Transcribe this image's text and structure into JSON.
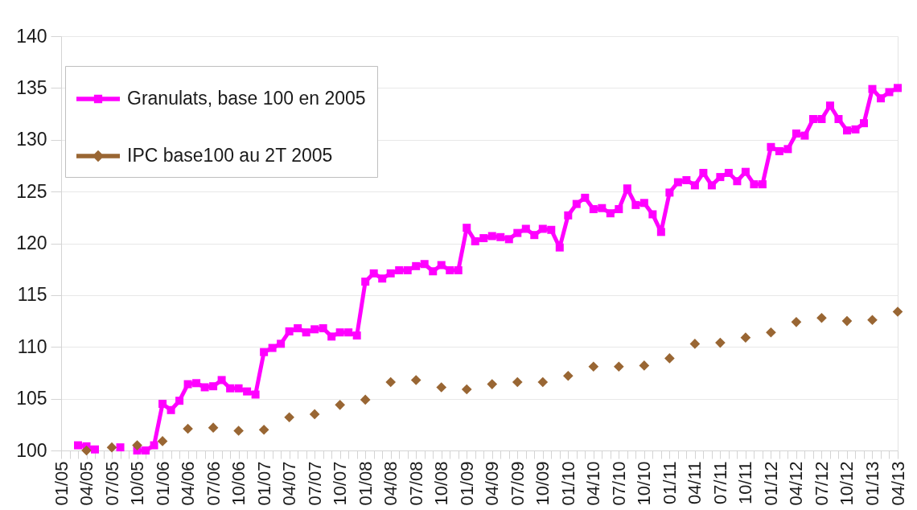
{
  "chart_data": {
    "type": "line",
    "categories": [
      "01/05",
      null,
      null,
      "04/05",
      null,
      null,
      "07/05",
      null,
      null,
      "10/05",
      null,
      null,
      "01/06",
      null,
      null,
      "04/06",
      null,
      null,
      "07/06",
      null,
      null,
      "10/06",
      null,
      null,
      "01/07",
      null,
      null,
      "04/07",
      null,
      null,
      "07/07",
      null,
      null,
      "10/07",
      null,
      null,
      "01/08",
      null,
      null,
      "04/08",
      null,
      null,
      "07/08",
      null,
      null,
      "10/08",
      null,
      null,
      "01/09",
      null,
      null,
      "04/09",
      null,
      null,
      "07/09",
      null,
      null,
      "10/09",
      null,
      null,
      "01/10",
      null,
      null,
      "04/10",
      null,
      null,
      "07/10",
      null,
      null,
      "10/10",
      null,
      null,
      "01/11",
      null,
      null,
      "04/11",
      null,
      null,
      "07/11",
      null,
      null,
      "10/11",
      null,
      null,
      "01/12",
      null,
      null,
      "04/12",
      null,
      null,
      "07/12",
      null,
      null,
      "10/12",
      null,
      null,
      "01/13",
      null,
      null,
      "04/13"
    ],
    "series": [
      {
        "name": "Granulats, base 100 en 2005",
        "color": "#ff00ff",
        "marker": "square",
        "values": [
          null,
          null,
          100.5,
          100.4,
          100.1,
          null,
          null,
          100.3,
          null,
          100.0,
          100.0,
          100.5,
          104.5,
          103.9,
          104.8,
          106.4,
          106.5,
          106.1,
          106.2,
          106.8,
          106.0,
          106.0,
          105.7,
          105.4,
          109.5,
          109.9,
          110.3,
          111.5,
          111.8,
          111.4,
          111.7,
          111.8,
          111.0,
          111.4,
          111.4,
          111.1,
          116.3,
          117.1,
          116.6,
          117.1,
          117.4,
          117.4,
          117.8,
          118.0,
          117.3,
          117.9,
          117.4,
          117.4,
          121.5,
          120.2,
          120.5,
          120.7,
          120.6,
          120.4,
          121.0,
          121.4,
          120.8,
          121.4,
          121.3,
          119.6,
          122.7,
          123.8,
          124.4,
          123.3,
          123.4,
          122.9,
          123.3,
          125.3,
          123.7,
          123.9,
          122.8,
          121.1,
          124.9,
          125.9,
          126.1,
          125.6,
          126.8,
          125.6,
          126.4,
          126.8,
          126.0,
          126.9,
          125.7,
          125.7,
          129.3,
          128.9,
          129.1,
          130.6,
          130.4,
          132.0,
          132.0,
          133.3,
          132.0,
          130.9,
          131.0,
          131.6,
          134.9,
          134.0,
          134.6,
          135.0
        ]
      },
      {
        "name": "IPC base100 au 2T 2005",
        "type": "scatter",
        "color": "#996633",
        "marker": "diamond",
        "values": [
          null,
          null,
          null,
          100.0,
          null,
          null,
          100.3,
          null,
          null,
          100.5,
          null,
          null,
          100.9,
          null,
          null,
          102.1,
          null,
          null,
          102.2,
          null,
          null,
          101.9,
          null,
          null,
          102.0,
          null,
          null,
          103.2,
          null,
          null,
          103.5,
          null,
          null,
          104.4,
          null,
          null,
          104.9,
          null,
          null,
          106.6,
          null,
          null,
          106.8,
          null,
          null,
          106.1,
          null,
          null,
          105.9,
          null,
          null,
          106.4,
          null,
          null,
          106.6,
          null,
          null,
          106.6,
          null,
          null,
          107.2,
          null,
          null,
          108.1,
          null,
          null,
          108.1,
          null,
          null,
          108.2,
          null,
          null,
          108.9,
          null,
          null,
          110.3,
          null,
          null,
          110.4,
          null,
          null,
          110.9,
          null,
          null,
          111.4,
          null,
          null,
          112.4,
          null,
          null,
          112.8,
          null,
          null,
          112.5,
          null,
          null,
          112.6,
          null,
          null,
          113.4
        ]
      }
    ],
    "ylim": [
      100,
      140
    ],
    "yticks": [
      100,
      105,
      110,
      115,
      120,
      125,
      130,
      135,
      140
    ],
    "grid": "y",
    "legend": "top left"
  }
}
